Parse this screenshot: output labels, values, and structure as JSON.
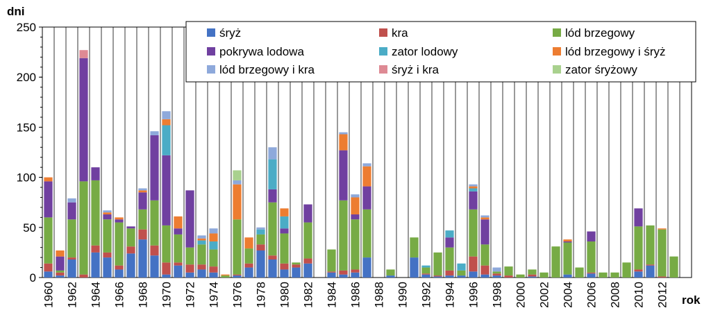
{
  "chart_data": {
    "type": "bar",
    "stacked": true,
    "ylabel": "dni",
    "xlabel": "rok",
    "ylim": [
      0,
      250
    ],
    "yticks": [
      0,
      50,
      100,
      150,
      200,
      250
    ],
    "grid": "vertical",
    "legend_position": "top-right",
    "x": [
      1960,
      1961,
      1962,
      1963,
      1964,
      1965,
      1966,
      1967,
      1968,
      1969,
      1970,
      1971,
      1972,
      1973,
      1974,
      1975,
      1976,
      1977,
      1978,
      1979,
      1980,
      1981,
      1982,
      1983,
      1984,
      1985,
      1986,
      1987,
      1988,
      1989,
      1990,
      1991,
      1992,
      1993,
      1994,
      1995,
      1996,
      1997,
      1998,
      1999,
      2000,
      2001,
      2002,
      2003,
      2004,
      2005,
      2006,
      2007,
      2008,
      2009,
      2010,
      2011,
      2012,
      2013
    ],
    "xticks": [
      1960,
      1962,
      1964,
      1966,
      1968,
      1970,
      1972,
      1974,
      1976,
      1978,
      1980,
      1982,
      1984,
      1986,
      1988,
      1990,
      1992,
      1994,
      1996,
      1998,
      2000,
      2002,
      2004,
      2006,
      2008,
      2010,
      2012
    ],
    "series": [
      {
        "name": "śryż",
        "color": "#4472C4",
        "values": [
          6,
          2,
          18,
          0,
          25,
          20,
          8,
          24,
          38,
          22,
          3,
          12,
          5,
          8,
          5,
          0,
          2,
          10,
          27,
          18,
          8,
          10,
          14,
          0,
          5,
          3,
          5,
          20,
          0,
          2,
          0,
          20,
          3,
          1,
          2,
          2,
          6,
          3,
          2,
          0,
          0,
          1,
          0,
          0,
          3,
          0,
          4,
          0,
          0,
          0,
          6,
          12,
          0,
          0
        ]
      },
      {
        "name": "kra",
        "color": "#C0504D",
        "values": [
          8,
          3,
          2,
          3,
          7,
          5,
          4,
          7,
          10,
          10,
          12,
          3,
          8,
          5,
          6,
          0,
          1,
          4,
          6,
          4,
          6,
          3,
          5,
          0,
          1,
          4,
          3,
          0,
          0,
          0,
          0,
          0,
          1,
          1,
          5,
          0,
          15,
          9,
          2,
          2,
          0,
          2,
          0,
          0,
          0,
          0,
          1,
          0,
          0,
          0,
          2,
          1,
          1,
          0
        ]
      },
      {
        "name": "lód brzegowy",
        "color": "#77AB45",
        "values": [
          46,
          2,
          38,
          93,
          65,
          33,
          43,
          18,
          20,
          45,
          37,
          28,
          17,
          20,
          17,
          2,
          55,
          15,
          10,
          53,
          30,
          2,
          36,
          0,
          22,
          70,
          50,
          48,
          0,
          6,
          0,
          20,
          6,
          23,
          23,
          5,
          47,
          21,
          2,
          9,
          3,
          5,
          5,
          31,
          32,
          10,
          31,
          5,
          5,
          15,
          43,
          39,
          47,
          21
        ]
      },
      {
        "name": "pokrywa lodowa",
        "color": "#7040A0",
        "values": [
          36,
          14,
          17,
          123,
          13,
          5,
          3,
          2,
          17,
          65,
          70,
          6,
          57,
          0,
          0,
          0,
          0,
          0,
          0,
          13,
          5,
          0,
          18,
          0,
          0,
          50,
          5,
          23,
          0,
          0,
          0,
          0,
          0,
          0,
          10,
          0,
          18,
          25,
          0,
          0,
          0,
          0,
          0,
          0,
          1,
          0,
          10,
          0,
          0,
          0,
          18,
          0,
          0,
          0
        ]
      },
      {
        "name": "zator lodowy",
        "color": "#4BACC6",
        "values": [
          0,
          0,
          0,
          0,
          0,
          0,
          0,
          0,
          0,
          0,
          30,
          0,
          0,
          4,
          8,
          0,
          0,
          0,
          5,
          30,
          12,
          0,
          0,
          0,
          0,
          0,
          0,
          0,
          0,
          0,
          0,
          0,
          2,
          0,
          7,
          7,
          3,
          0,
          0,
          0,
          0,
          0,
          0,
          0,
          0,
          0,
          0,
          0,
          0,
          0,
          0,
          0,
          0,
          0
        ]
      },
      {
        "name": "lód brzegowy i śryż",
        "color": "#ED7D31",
        "values": [
          4,
          6,
          0,
          0,
          0,
          2,
          2,
          0,
          2,
          0,
          6,
          12,
          0,
          2,
          8,
          1,
          35,
          11,
          0,
          0,
          8,
          0,
          0,
          0,
          0,
          16,
          17,
          20,
          0,
          0,
          0,
          0,
          0,
          0,
          0,
          0,
          2,
          2,
          0,
          0,
          0,
          0,
          0,
          0,
          2,
          0,
          0,
          0,
          0,
          0,
          0,
          0,
          1,
          0
        ]
      },
      {
        "name": "lód brzegowy i kra",
        "color": "#8EA9DB",
        "values": [
          0,
          0,
          4,
          0,
          0,
          2,
          0,
          0,
          2,
          4,
          8,
          0,
          0,
          3,
          5,
          0,
          4,
          0,
          2,
          12,
          0,
          0,
          0,
          0,
          0,
          2,
          3,
          3,
          0,
          0,
          0,
          0,
          0,
          0,
          0,
          0,
          2,
          2,
          4,
          0,
          0,
          0,
          0,
          0,
          0,
          0,
          0,
          0,
          0,
          0,
          0,
          0,
          0,
          0
        ]
      },
      {
        "name": "śryż i kra",
        "color": "#DE8A94",
        "values": [
          0,
          0,
          0,
          8,
          0,
          0,
          0,
          0,
          0,
          0,
          0,
          0,
          0,
          0,
          0,
          0,
          0,
          0,
          0,
          0,
          0,
          0,
          0,
          0,
          0,
          0,
          0,
          0,
          0,
          0,
          0,
          0,
          0,
          0,
          0,
          0,
          0,
          0,
          0,
          0,
          0,
          0,
          0,
          0,
          0,
          0,
          0,
          0,
          0,
          0,
          0,
          0,
          0,
          0
        ]
      },
      {
        "name": "zator śryżowy",
        "color": "#A9D18E",
        "values": [
          0,
          0,
          0,
          0,
          0,
          0,
          0,
          0,
          0,
          0,
          0,
          0,
          0,
          0,
          0,
          0,
          10,
          0,
          0,
          0,
          0,
          0,
          0,
          0,
          0,
          0,
          0,
          0,
          0,
          0,
          0,
          0,
          0,
          0,
          0,
          0,
          0,
          0,
          0,
          0,
          0,
          0,
          0,
          0,
          0,
          0,
          0,
          0,
          0,
          0,
          0,
          0,
          0,
          0
        ]
      }
    ]
  }
}
